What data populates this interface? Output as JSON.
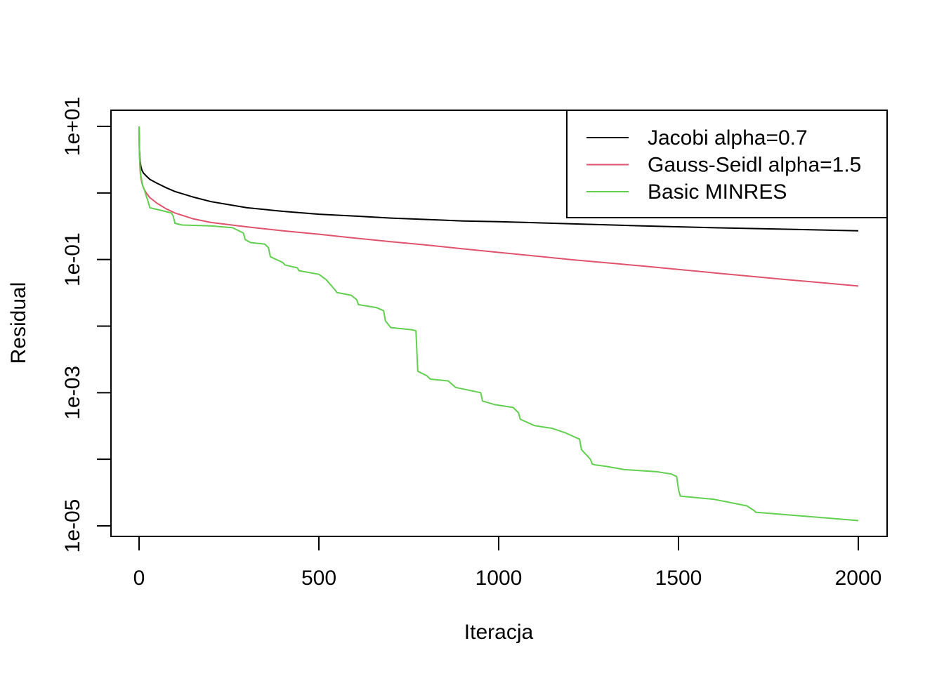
{
  "chart_data": {
    "type": "line",
    "title": "",
    "xlabel": "Iteracja",
    "ylabel": "Residual",
    "xlim": [
      0,
      2000
    ],
    "ylim": [
      1e-05,
      10
    ],
    "y_scale": "log",
    "x_ticks": [
      0,
      500,
      1000,
      1500,
      2000
    ],
    "x_tick_labels": [
      "0",
      "500",
      "1000",
      "1500",
      "2000"
    ],
    "y_ticks_labeled": [
      10,
      0.1,
      0.001,
      1e-05
    ],
    "y_tick_labels": [
      "1e+01",
      "1e-01",
      "1e-03",
      "1e-05"
    ],
    "y_ticks_minor": [
      1,
      0.01,
      0.0001
    ],
    "grid": false,
    "legend_position": "top-right",
    "series": [
      {
        "name": "Jacobi alpha=0.7",
        "color": "#000000",
        "x": [
          0,
          1,
          3,
          5,
          8,
          12,
          20,
          30,
          50,
          75,
          100,
          150,
          200,
          300,
          400,
          500,
          600,
          700,
          800,
          900,
          1000,
          1200,
          1400,
          1600,
          1800,
          2000
        ],
        "y": [
          10,
          4.5,
          3.0,
          2.5,
          2.2,
          2.0,
          1.8,
          1.6,
          1.4,
          1.2,
          1.05,
          0.87,
          0.74,
          0.6,
          0.53,
          0.48,
          0.45,
          0.42,
          0.4,
          0.38,
          0.37,
          0.345,
          0.32,
          0.3,
          0.285,
          0.27
        ]
      },
      {
        "name": "Gauss-Seidl alpha=1.5",
        "color": "#DF536B",
        "x": [
          0,
          1,
          3,
          5,
          8,
          12,
          20,
          30,
          50,
          75,
          100,
          150,
          200,
          300,
          400,
          500,
          600,
          700,
          800,
          900,
          1000,
          1200,
          1400,
          1600,
          1800,
          2000
        ],
        "y": [
          10,
          3.8,
          2.2,
          1.7,
          1.4,
          1.2,
          1.0,
          0.85,
          0.7,
          0.58,
          0.5,
          0.41,
          0.36,
          0.31,
          0.27,
          0.24,
          0.21,
          0.185,
          0.165,
          0.145,
          0.128,
          0.1,
          0.08,
          0.063,
          0.05,
          0.04
        ]
      },
      {
        "name": "Basic MINRES",
        "color": "#61D04F",
        "x": [
          0,
          1,
          3,
          5,
          10,
          15,
          20,
          25,
          30,
          60,
          90,
          95,
          100,
          120,
          200,
          260,
          290,
          295,
          310,
          350,
          360,
          365,
          400,
          405,
          440,
          445,
          500,
          520,
          545,
          550,
          590,
          605,
          610,
          660,
          680,
          685,
          700,
          760,
          770,
          775,
          800,
          810,
          860,
          880,
          950,
          955,
          990,
          1040,
          1055,
          1060,
          1100,
          1150,
          1185,
          1200,
          1225,
          1230,
          1255,
          1260,
          1270,
          1300,
          1350,
          1440,
          1480,
          1495,
          1500,
          1505,
          1600,
          1690,
          1710,
          1715,
          2000
        ],
        "y": [
          10,
          4.2,
          2.5,
          1.8,
          1.3,
          1.1,
          0.9,
          0.75,
          0.6,
          0.55,
          0.5,
          0.45,
          0.35,
          0.33,
          0.32,
          0.3,
          0.25,
          0.2,
          0.18,
          0.17,
          0.15,
          0.11,
          0.09,
          0.083,
          0.075,
          0.068,
          0.06,
          0.05,
          0.035,
          0.032,
          0.029,
          0.025,
          0.021,
          0.019,
          0.017,
          0.012,
          0.0095,
          0.0088,
          0.0085,
          0.0021,
          0.0018,
          0.0016,
          0.0015,
          0.0012,
          0.001,
          0.00075,
          0.00066,
          0.0006,
          0.0005,
          0.0004,
          0.00032,
          0.00029,
          0.00025,
          0.00023,
          0.0002,
          0.00014,
          0.0001,
          8.5e-05,
          8.2e-05,
          7.8e-05,
          7e-05,
          6.5e-05,
          6e-05,
          5.5e-05,
          3.5e-05,
          2.8e-05,
          2.5e-05,
          2e-05,
          1.7e-05,
          1.6e-05,
          1.2e-05
        ]
      }
    ]
  }
}
